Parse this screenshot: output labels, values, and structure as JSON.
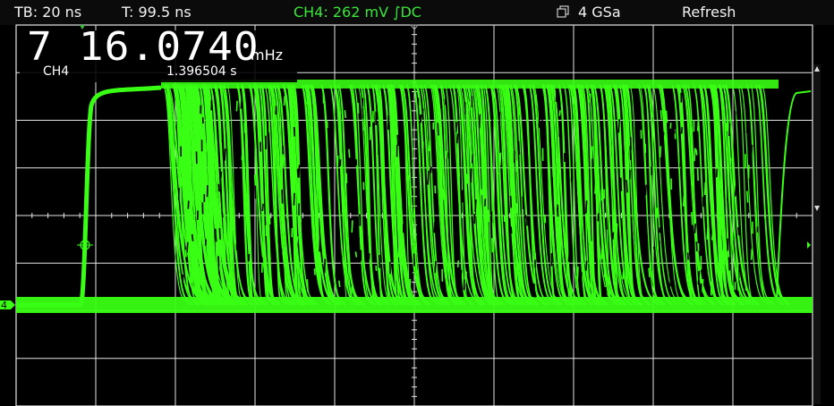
{
  "header": {
    "timebase": "TB: 20 ns",
    "trigger_time": "T: 99.5 ns",
    "channel_info": "CH4: 262 mV ∫DC",
    "sample_rate": "4 GSa",
    "refresh_label": "Refresh",
    "sample_icon": "memory-stack-icon"
  },
  "measurement": {
    "frequency_value": "7 16.0740",
    "frequency_unit": "mHz",
    "channel": "CH4",
    "time": "1.396504 s"
  },
  "markers": {
    "channel_marker": "4"
  },
  "colors": {
    "trace": "#39ff14",
    "grid": "#e6e6e6",
    "background": "#000000",
    "trigger_marker": "#35c235"
  }
}
